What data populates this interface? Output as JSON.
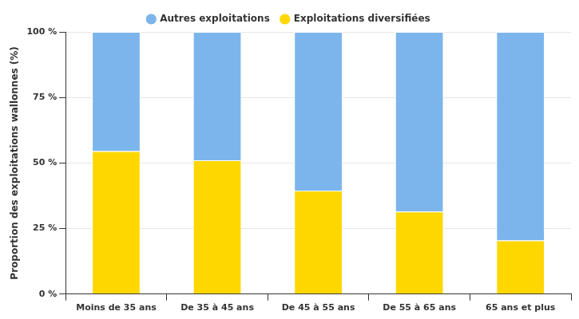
{
  "chart_data": {
    "type": "bar",
    "stacked": true,
    "y_label": "Proportion des exploitations wallonnes (%)",
    "categories": [
      "Moins de 35 ans",
      "De 35 à 45 ans",
      "De 45 à 55 ans",
      "De 55 à 65 ans",
      "65 ans et plus"
    ],
    "series": [
      {
        "name": "Autres exploitations",
        "color": "#7cb5ec",
        "values": [
          45.5,
          49,
          60.5,
          68.5,
          79.5
        ]
      },
      {
        "name": "Exploitations diversifiées",
        "color": "#ffd700",
        "values": [
          54.5,
          51,
          39.5,
          31.5,
          20.5
        ]
      }
    ],
    "ylim": [
      0,
      100
    ],
    "yticks": [
      {
        "value": 0,
        "label": "0 %"
      },
      {
        "value": 25,
        "label": "25 %"
      },
      {
        "value": 50,
        "label": "50 %"
      },
      {
        "value": 75,
        "label": "75 %"
      },
      {
        "value": 100,
        "label": "100 %"
      }
    ],
    "grid": true,
    "legend": "top"
  }
}
